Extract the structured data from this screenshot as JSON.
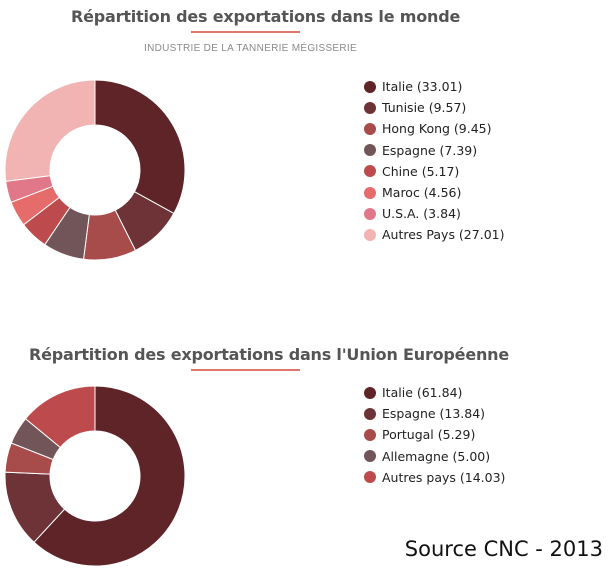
{
  "chart_data": [
    {
      "type": "pie",
      "title": "Répartition des exportations dans le monde",
      "subtitle": "INDUSTRIE DE LA TANNERIE MÉGISSERIE",
      "legend_position": "right",
      "slices": [
        {
          "label": "Italie",
          "value": 33.01,
          "legend": "Italie (33.01)",
          "color": "#5e2427"
        },
        {
          "label": "Tunisie",
          "value": 9.57,
          "legend": "Tunisie (9.57)",
          "color": "#6e3337"
        },
        {
          "label": "Hong Kong",
          "value": 9.45,
          "legend": "Hong Kong (9.45)",
          "color": "#a84b4b"
        },
        {
          "label": "Espagne",
          "value": 7.39,
          "legend": "Espagne (7.39)",
          "color": "#715558"
        },
        {
          "label": "Chine",
          "value": 5.17,
          "legend": "Chine (5.17)",
          "color": "#bd4b4d"
        },
        {
          "label": "Maroc",
          "value": 4.56,
          "legend": "Maroc (4.56)",
          "color": "#e66b6b"
        },
        {
          "label": "U.S.A.",
          "value": 3.84,
          "legend": "U.S.A. (3.84)",
          "color": "#e0788a"
        },
        {
          "label": "Autres Pays",
          "value": 27.01,
          "legend": "Autres Pays (27.01)",
          "color": "#f2b3b3"
        }
      ]
    },
    {
      "type": "pie",
      "title": "Répartition des exportations dans l'Union Européenne",
      "legend_position": "right",
      "slices": [
        {
          "label": "Italie",
          "value": 61.84,
          "legend": "Italie (61.84)",
          "color": "#5e2427"
        },
        {
          "label": "Espagne",
          "value": 13.84,
          "legend": "Espagne (13.84)",
          "color": "#6e3337"
        },
        {
          "label": "Portugal",
          "value": 5.29,
          "legend": "Portugal (5.29)",
          "color": "#a84b4b"
        },
        {
          "label": "Allemagne",
          "value": 5.0,
          "legend": "Allemagne (5.00)",
          "color": "#715558"
        },
        {
          "label": "Autres pays",
          "value": 14.03,
          "legend": "Autres pays (14.03)",
          "color": "#bd4b4d"
        }
      ]
    }
  ],
  "source": "Source CNC - 2013"
}
